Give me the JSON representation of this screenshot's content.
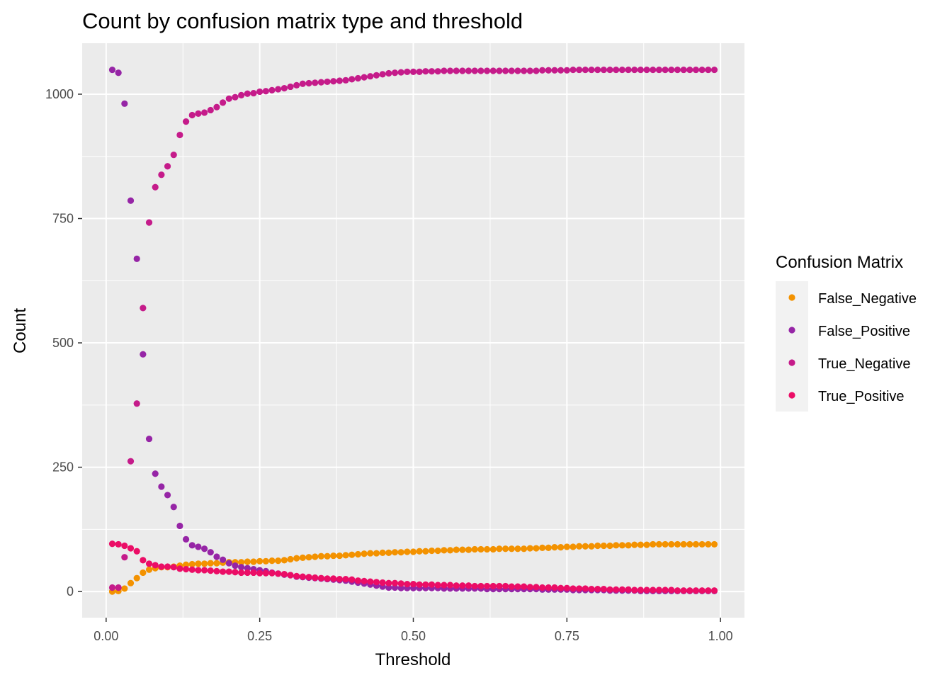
{
  "chart_data": {
    "type": "scatter",
    "title": "Count by confusion matrix type and threshold",
    "xlabel": "Threshold",
    "ylabel": "Count",
    "xlim": [
      -0.039,
      1.039
    ],
    "ylim": [
      -52.5,
      1102.5
    ],
    "x_ticks": [
      0,
      0.25,
      0.5,
      0.75,
      1
    ],
    "x_tick_labels": [
      "0.00",
      "0.25",
      "0.50",
      "0.75",
      "1.00"
    ],
    "y_ticks": [
      0,
      250,
      500,
      750,
      1000
    ],
    "y_tick_labels": [
      "0",
      "250",
      "500",
      "750",
      "1000"
    ],
    "grid": true,
    "legend": {
      "title": "Confusion Matrix",
      "position": "right"
    },
    "x": [
      0.01,
      0.02,
      0.03,
      0.04,
      0.05,
      0.06,
      0.07,
      0.08,
      0.09,
      0.1,
      0.11,
      0.12,
      0.13,
      0.14,
      0.15,
      0.16,
      0.17,
      0.18,
      0.19,
      0.2,
      0.21,
      0.22,
      0.23,
      0.24,
      0.25,
      0.26,
      0.27,
      0.28,
      0.29,
      0.3,
      0.31,
      0.32,
      0.33,
      0.34,
      0.35,
      0.36,
      0.37,
      0.38,
      0.39,
      0.4,
      0.41,
      0.42,
      0.43,
      0.44,
      0.45,
      0.46,
      0.47,
      0.48,
      0.49,
      0.5,
      0.51,
      0.52,
      0.53,
      0.54,
      0.55,
      0.56,
      0.57,
      0.58,
      0.59,
      0.6,
      0.61,
      0.62,
      0.63,
      0.64,
      0.65,
      0.66,
      0.67,
      0.68,
      0.69,
      0.7,
      0.71,
      0.72,
      0.73,
      0.74,
      0.75,
      0.76,
      0.77,
      0.78,
      0.79,
      0.8,
      0.81,
      0.82,
      0.83,
      0.84,
      0.85,
      0.86,
      0.87,
      0.88,
      0.89,
      0.9,
      0.91,
      0.92,
      0.93,
      0.94,
      0.95,
      0.96,
      0.97,
      0.98,
      0.99
    ],
    "series": [
      {
        "name": "False_Negative",
        "color": "#F39200",
        "values": [
          0,
          1,
          6,
          17,
          27,
          38,
          44,
          47,
          49,
          49,
          50,
          52,
          54,
          55,
          56,
          56,
          57,
          57,
          58,
          59,
          59,
          59,
          60,
          60,
          61,
          61,
          62,
          62,
          63,
          65,
          67,
          68,
          69,
          70,
          71,
          71,
          72,
          72,
          73,
          74,
          75,
          76,
          77,
          77,
          78,
          78,
          79,
          79,
          80,
          80,
          81,
          81,
          82,
          82,
          83,
          83,
          84,
          84,
          84,
          85,
          85,
          85,
          85,
          86,
          86,
          86,
          86,
          86,
          87,
          87,
          88,
          88,
          89,
          89,
          90,
          90,
          91,
          91,
          91,
          92,
          92,
          92,
          93,
          93,
          93,
          94,
          94,
          94,
          95,
          95,
          95,
          95,
          95,
          95,
          95,
          95,
          95,
          95,
          95
        ]
      },
      {
        "name": "False_Positive",
        "color": "#9625A6",
        "values": [
          1049,
          1043,
          981,
          786,
          669,
          477,
          307,
          237,
          211,
          194,
          170,
          132,
          105,
          93,
          90,
          86,
          79,
          70,
          64,
          57,
          52,
          49,
          47,
          45,
          43,
          41,
          38,
          36,
          34,
          33,
          30,
          29,
          28,
          27,
          26,
          25,
          24,
          23,
          22,
          20,
          18,
          16,
          14,
          12,
          10,
          8,
          8,
          7,
          7,
          7,
          7,
          7,
          7,
          7,
          6,
          6,
          6,
          6,
          6,
          6,
          6,
          5,
          5,
          5,
          5,
          5,
          5,
          5,
          5,
          5,
          4,
          4,
          4,
          4,
          4,
          3,
          3,
          3,
          3,
          3,
          3,
          2,
          2,
          2,
          2,
          2,
          1,
          1,
          1,
          1,
          1,
          1,
          1,
          1,
          1,
          1,
          1,
          1,
          1
        ]
      },
      {
        "name": "True_Negative",
        "color": "#C51B8A",
        "values": [
          8,
          8,
          69,
          262,
          378,
          570,
          742,
          813,
          838,
          855,
          878,
          918,
          945,
          958,
          961,
          963,
          968,
          974,
          983,
          991,
          994,
          998,
          1001,
          1002,
          1005,
          1006,
          1008,
          1010,
          1012,
          1015,
          1018,
          1021,
          1022,
          1023,
          1024,
          1025,
          1026,
          1027,
          1028,
          1030,
          1032,
          1034,
          1036,
          1038,
          1040,
          1042,
          1043,
          1044,
          1045,
          1045,
          1045,
          1046,
          1046,
          1046,
          1047,
          1047,
          1047,
          1047,
          1047,
          1047,
          1047,
          1047,
          1047,
          1047,
          1047,
          1047,
          1047,
          1047,
          1047,
          1047,
          1048,
          1048,
          1048,
          1048,
          1048,
          1049,
          1049,
          1049,
          1049,
          1049,
          1049,
          1049,
          1049,
          1049,
          1049,
          1049,
          1049,
          1049,
          1049,
          1049,
          1049,
          1049,
          1049,
          1049,
          1049,
          1049,
          1049,
          1049,
          1049
        ]
      },
      {
        "name": "True_Positive",
        "color": "#EB0D66",
        "values": [
          96,
          95,
          92,
          87,
          81,
          63,
          56,
          53,
          50,
          50,
          49,
          46,
          45,
          44,
          43,
          43,
          42,
          41,
          40,
          40,
          39,
          38,
          38,
          38,
          37,
          37,
          37,
          36,
          35,
          33,
          31,
          30,
          29,
          28,
          27,
          26,
          26,
          25,
          25,
          24,
          22,
          21,
          20,
          19,
          18,
          17,
          17,
          16,
          15,
          15,
          14,
          14,
          14,
          13,
          13,
          13,
          12,
          12,
          12,
          11,
          11,
          11,
          11,
          11,
          11,
          10,
          10,
          10,
          9,
          9,
          8,
          8,
          8,
          7,
          7,
          6,
          6,
          6,
          5,
          5,
          5,
          4,
          4,
          4,
          4,
          3,
          3,
          3,
          3,
          3,
          3,
          3,
          2,
          2,
          2,
          2,
          2,
          2,
          2
        ]
      }
    ]
  },
  "style": {
    "panel_background": "#EBEBEB",
    "grid_color": "#FFFFFF",
    "legend_key_background": "#F2F2F2"
  }
}
